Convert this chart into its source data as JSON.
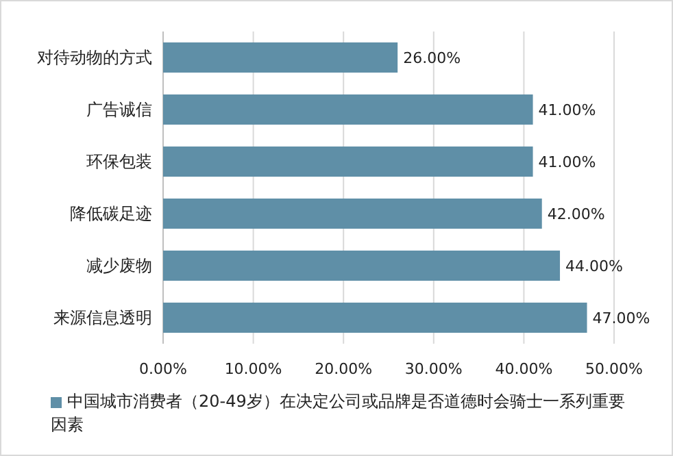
{
  "chart_data": {
    "type": "bar",
    "orientation": "horizontal",
    "categories": [
      "对待动物的方式",
      "广告诚信",
      "环保包装",
      "降低碳足迹",
      "减少废物",
      "来源信息透明"
    ],
    "series": [
      {
        "name": "中国城市消费者（20-49岁）在决定公司或品牌是否道德时会骑士一系列重要因素",
        "color": "#5f8fa7",
        "values": [
          26,
          41,
          41,
          42,
          44,
          47
        ],
        "value_labels": [
          "26.00%",
          "41.00%",
          "41.00%",
          "42.00%",
          "44.00%",
          "47.00%"
        ]
      }
    ],
    "xlim": [
      0,
      50
    ],
    "xticks": [
      {
        "value": 0,
        "label": "0.00%"
      },
      {
        "value": 10,
        "label": "10.00%"
      },
      {
        "value": 20,
        "label": "20.00%"
      },
      {
        "value": 30,
        "label": "30.00%"
      },
      {
        "value": 40,
        "label": "40.00%"
      },
      {
        "value": 50,
        "label": "50.00%"
      }
    ],
    "grid": "x",
    "legend": "bottom"
  }
}
